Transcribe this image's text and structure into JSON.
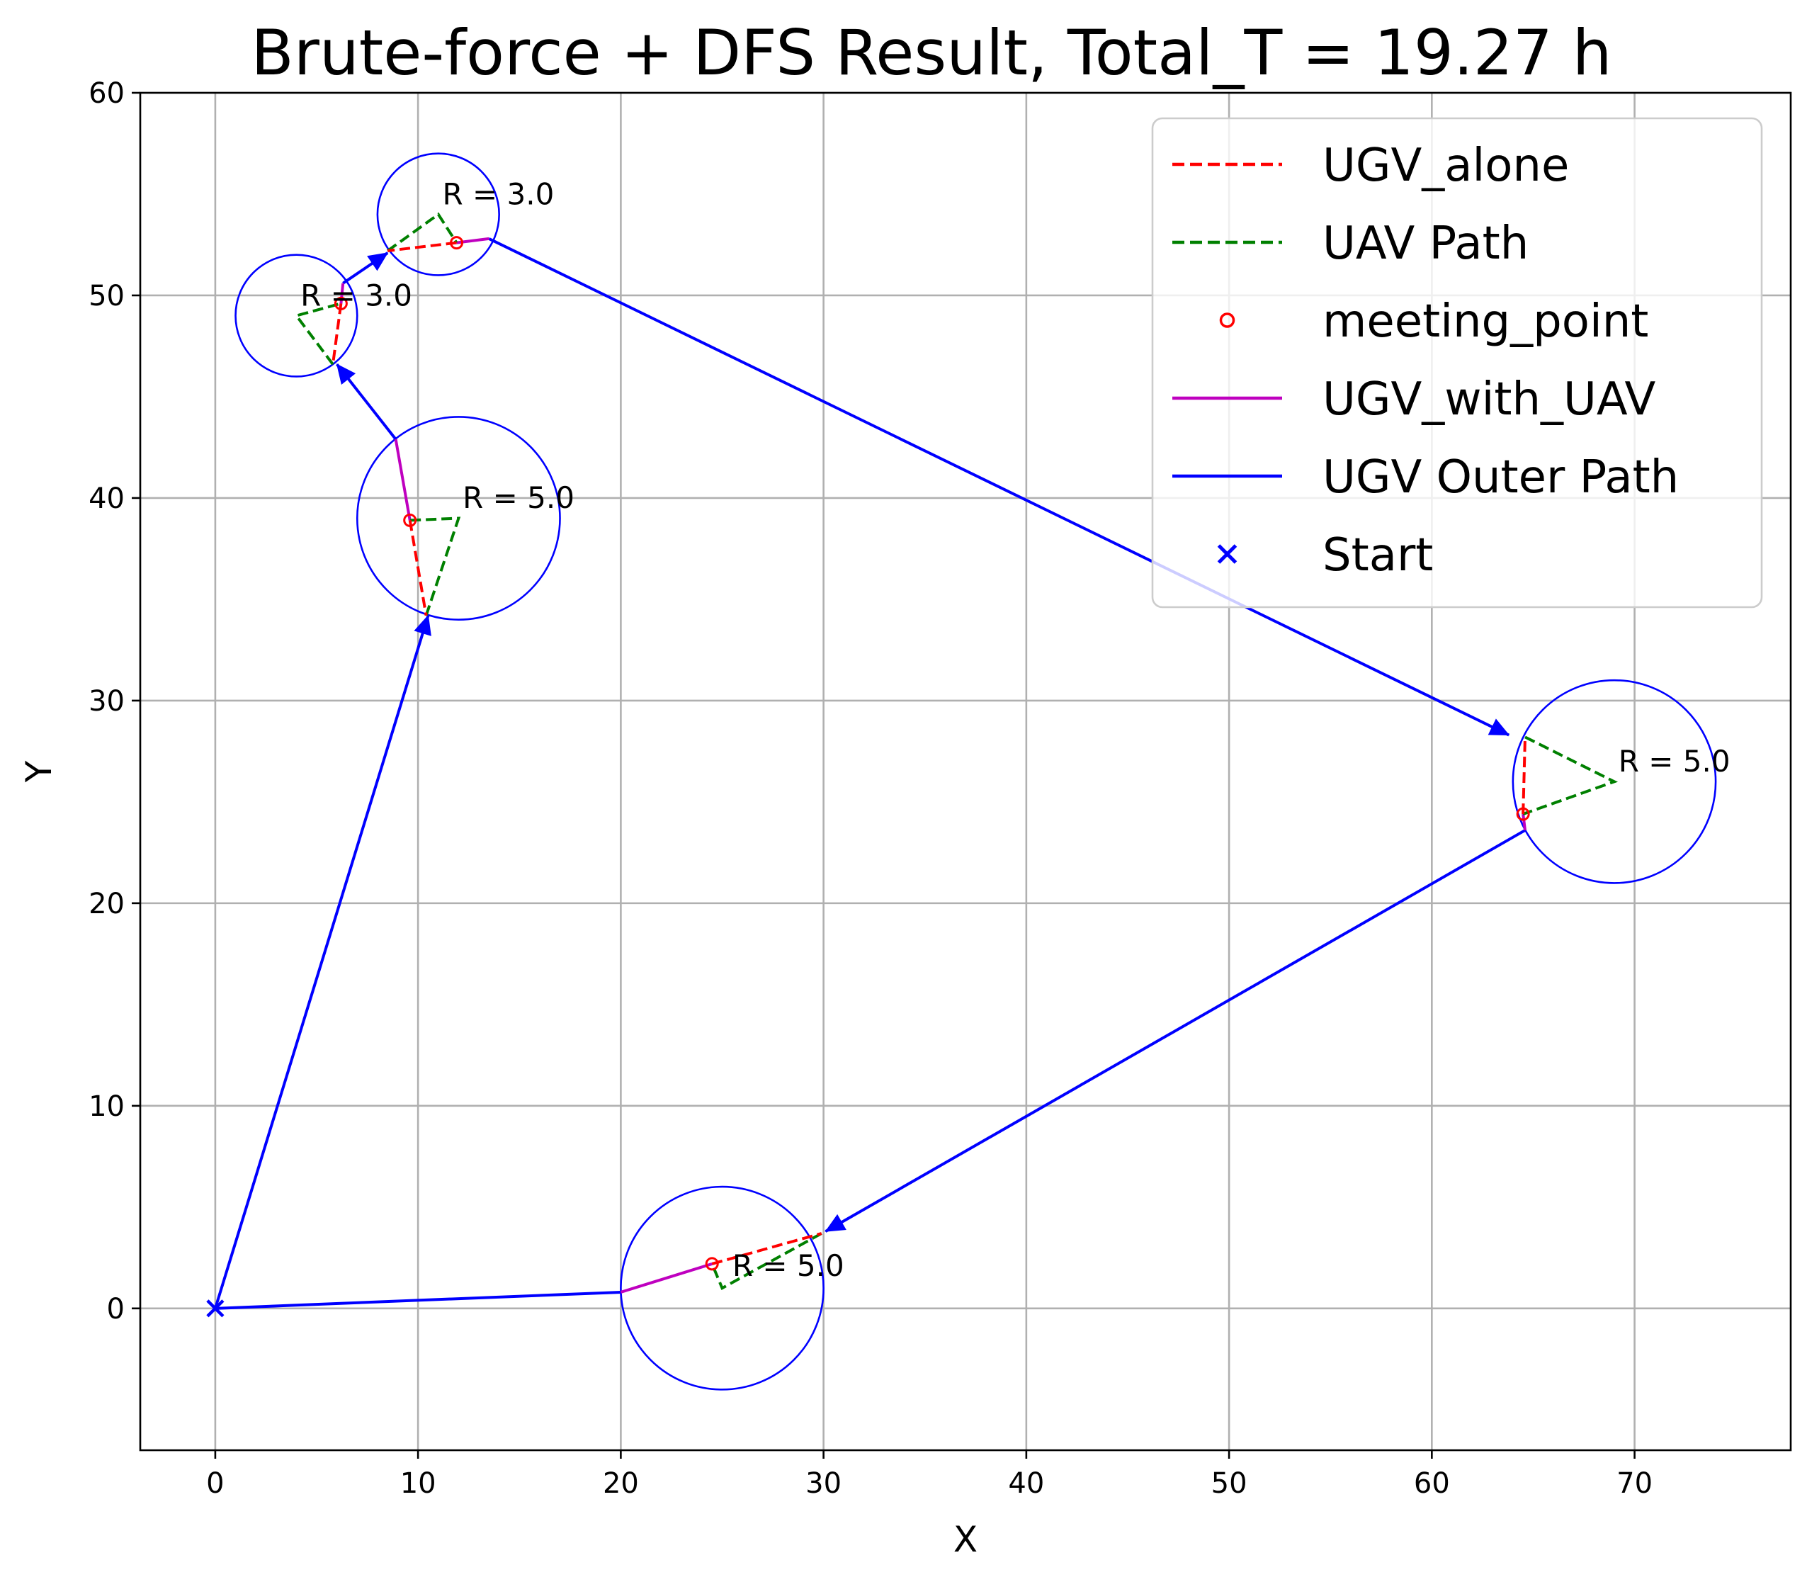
{
  "chart_data": {
    "type": "line",
    "title": "Brute-force + DFS Result, Total_T = 19.27 h",
    "xlabel": "X",
    "ylabel": "Y",
    "xlim": [
      -3.7,
      77.7
    ],
    "ylim": [
      -7,
      60
    ],
    "xticks": [
      0,
      10,
      20,
      30,
      40,
      50,
      60,
      70
    ],
    "yticks": [
      0,
      10,
      20,
      30,
      40,
      50,
      60
    ],
    "grid": true,
    "legend_position": "top-right",
    "legend": [
      {
        "label": "UGV_alone",
        "style": "dashed",
        "color": "#ff0000",
        "marker": "none"
      },
      {
        "label": "UAV Path",
        "style": "dashed",
        "color": "#008000",
        "marker": "none"
      },
      {
        "label": "meeting_point",
        "style": "none",
        "color": "#ff0000",
        "marker": "open-circle"
      },
      {
        "label": "UGV_with_UAV",
        "style": "solid",
        "color": "#bf00bf",
        "marker": "none"
      },
      {
        "label": "UGV Outer Path",
        "style": "solid",
        "color": "#0000ff",
        "marker": "none"
      },
      {
        "label": "Start",
        "style": "none",
        "color": "#0000ff",
        "marker": "x"
      }
    ],
    "start": [
      0,
      0
    ],
    "circles": [
      {
        "cx": 25,
        "cy": 1,
        "r": 5.0,
        "label": "R = 5.0",
        "label_pos": [
          25.5,
          1.6
        ]
      },
      {
        "cx": 69,
        "cy": 26,
        "r": 5.0,
        "label": "R = 5.0",
        "label_pos": [
          69.2,
          26.5
        ]
      },
      {
        "cx": 12,
        "cy": 39,
        "r": 5.0,
        "label": "R = 5.0",
        "label_pos": [
          12.2,
          39.5
        ]
      },
      {
        "cx": 4,
        "cy": 49,
        "r": 3.0,
        "label": "R = 3.0",
        "label_pos": [
          4.2,
          49.5
        ]
      },
      {
        "cx": 11,
        "cy": 54,
        "r": 3.0,
        "label": "R = 3.0",
        "label_pos": [
          11.2,
          54.5
        ]
      }
    ],
    "ugv_outer_path": [
      {
        "from": [
          0,
          0
        ],
        "to": [
          20,
          0.8
        ],
        "arrow": false
      },
      {
        "from": [
          64.6,
          23.6
        ],
        "to": [
          30.1,
          3.8
        ],
        "arrow": true
      },
      {
        "from": [
          13.5,
          52.8
        ],
        "to": [
          63.8,
          28.3
        ],
        "arrow": true
      },
      {
        "from": [
          0,
          0
        ],
        "to": [
          10.5,
          34.2
        ],
        "arrow": true
      },
      {
        "from": [
          8.9,
          42.9
        ],
        "to": [
          6.0,
          46.6
        ],
        "arrow": true
      },
      {
        "from": [
          6.3,
          50.6
        ],
        "to": [
          8.5,
          52.1
        ],
        "arrow": true
      }
    ],
    "ugv_with_uav": [
      [
        [
          20,
          0.8
        ],
        [
          24.5,
          2.2
        ]
      ],
      [
        [
          64.5,
          24.4
        ],
        [
          64.6,
          23.6
        ]
      ],
      [
        [
          9.6,
          38.9
        ],
        [
          8.9,
          42.9
        ]
      ],
      [
        [
          6.2,
          49.6
        ],
        [
          6.3,
          50.6
        ]
      ],
      [
        [
          11.9,
          52.6
        ],
        [
          13.5,
          52.8
        ]
      ]
    ],
    "ugv_alone": [
      [
        [
          24.5,
          2.2
        ],
        [
          29.9,
          3.7
        ]
      ],
      [
        [
          64.5,
          24.4
        ],
        [
          64.6,
          28.2
        ]
      ],
      [
        [
          9.6,
          38.9
        ],
        [
          10.4,
          34.2
        ]
      ],
      [
        [
          6.2,
          49.6
        ],
        [
          5.8,
          46.6
        ]
      ],
      [
        [
          11.9,
          52.6
        ],
        [
          8.5,
          52.2
        ]
      ]
    ],
    "uav_path": [
      [
        [
          29.9,
          3.7
        ],
        [
          25,
          1
        ],
        [
          24.5,
          2.2
        ]
      ],
      [
        [
          64.6,
          28.2
        ],
        [
          69,
          26
        ],
        [
          64.5,
          24.4
        ]
      ],
      [
        [
          10.4,
          34.2
        ],
        [
          12,
          39
        ],
        [
          9.6,
          38.9
        ]
      ],
      [
        [
          5.8,
          46.6
        ],
        [
          4,
          49
        ],
        [
          6.2,
          49.6
        ]
      ],
      [
        [
          8.5,
          52.2
        ],
        [
          11,
          54
        ],
        [
          11.9,
          52.6
        ]
      ]
    ],
    "meeting_points": [
      [
        24.5,
        2.2
      ],
      [
        64.5,
        24.4
      ],
      [
        9.6,
        38.9
      ],
      [
        6.2,
        49.6
      ],
      [
        11.9,
        52.6
      ]
    ]
  }
}
